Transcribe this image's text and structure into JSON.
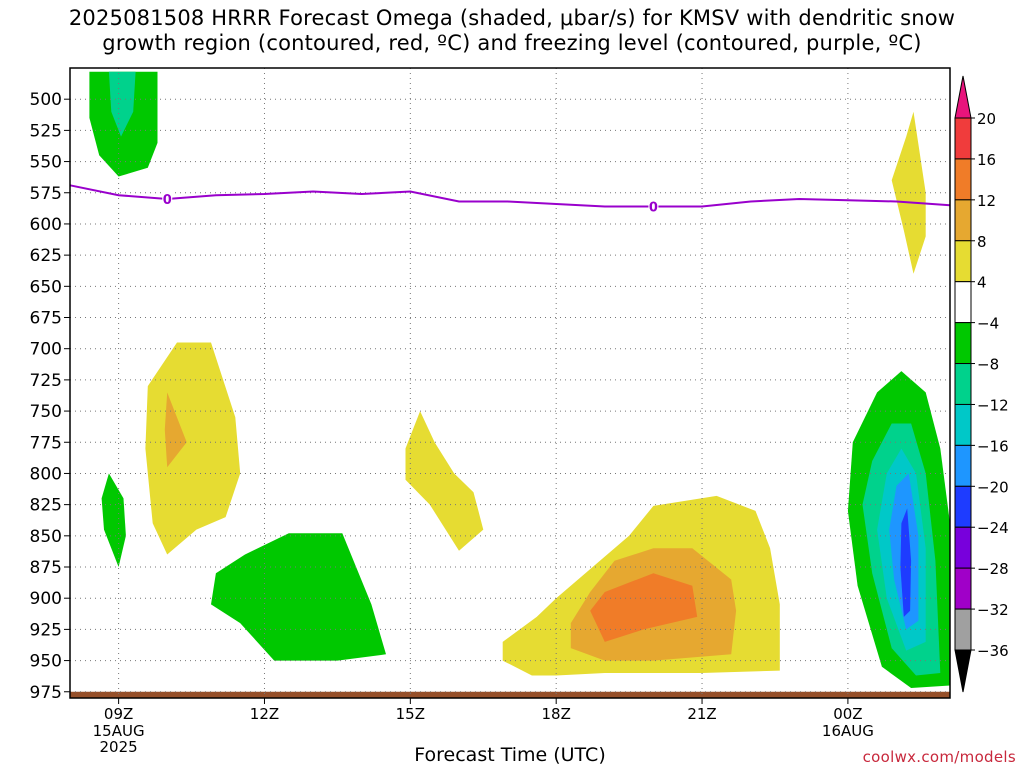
{
  "title": {
    "line1": "2025081508 HRRR Forecast Omega (shaded, μbar/s) for KMSV with dendritic snow",
    "line2": "growth region (contoured, red, ºC) and freezing level (contoured, purple, ºC)"
  },
  "credit": "coolwx.com/models",
  "chart_data": {
    "type": "heatmap",
    "title": "2025081508 HRRR Forecast Omega (shaded, μbar/s) for KMSV with dendritic snow growth region (contoured, red, ºC) and freezing level (contoured, purple, ºC)",
    "xlabel": "Forecast Time (UTC)",
    "ylabel": "",
    "x_range_hours_from_09Z": [
      -1,
      17.1
    ],
    "y_range_hPa": [
      475,
      980
    ],
    "y_axis": "pressure (inverted)",
    "y_ticks": [
      500,
      525,
      550,
      575,
      600,
      625,
      650,
      675,
      700,
      725,
      750,
      775,
      800,
      825,
      850,
      875,
      900,
      925,
      950,
      975
    ],
    "x_ticks": [
      {
        "hour": 0,
        "label": "09Z",
        "sub": [
          "15AUG",
          "2025"
        ]
      },
      {
        "hour": 3,
        "label": "12Z",
        "sub": []
      },
      {
        "hour": 6,
        "label": "15Z",
        "sub": []
      },
      {
        "hour": 9,
        "label": "18Z",
        "sub": []
      },
      {
        "hour": 12,
        "label": "21Z",
        "sub": []
      },
      {
        "hour": 15,
        "label": "00Z",
        "sub": [
          "16AUG"
        ]
      }
    ],
    "grid": true,
    "colorbar": {
      "position": "right",
      "labels": [
        "20",
        "16",
        "12",
        "8",
        "4",
        "−4",
        "−8",
        "−12",
        "−16",
        "−20",
        "−24",
        "−28",
        "−32",
        "−36"
      ],
      "levels": [
        {
          "min": 20,
          "color": "#e8147c"
        },
        {
          "min": 16,
          "max": 20,
          "color": "#f03c3c"
        },
        {
          "min": 12,
          "max": 16,
          "color": "#f07c28"
        },
        {
          "min": 8,
          "max": 12,
          "color": "#e6a830"
        },
        {
          "min": 4,
          "max": 8,
          "color": "#e6dc32"
        },
        {
          "min": -4,
          "max": 4,
          "color": "#ffffff"
        },
        {
          "min": -8,
          "max": -4,
          "color": "#00c800"
        },
        {
          "min": -12,
          "max": -8,
          "color": "#00d28c"
        },
        {
          "min": -16,
          "max": -12,
          "color": "#00c8c8"
        },
        {
          "min": -20,
          "max": -16,
          "color": "#1e96ff"
        },
        {
          "min": -24,
          "max": -20,
          "color": "#1e3cff"
        },
        {
          "min": -28,
          "max": -24,
          "color": "#7800dc"
        },
        {
          "min": -32,
          "max": -28,
          "color": "#a000c8"
        },
        {
          "min": -36,
          "max": -32,
          "color": "#a0a0a0"
        },
        {
          "max": -36,
          "color": "#000000"
        }
      ]
    },
    "freezing_level": {
      "color": "#9900cc",
      "label": "0",
      "label_points": [
        {
          "t": 1,
          "p": 580
        },
        {
          "t": 11,
          "p": 586
        }
      ],
      "points": [
        {
          "t": -1,
          "p": 569
        },
        {
          "t": 0,
          "p": 577
        },
        {
          "t": 1,
          "p": 580
        },
        {
          "t": 2,
          "p": 577
        },
        {
          "t": 3,
          "p": 576
        },
        {
          "t": 4,
          "p": 574
        },
        {
          "t": 5,
          "p": 576
        },
        {
          "t": 6,
          "p": 574
        },
        {
          "t": 7,
          "p": 582
        },
        {
          "t": 8,
          "p": 582
        },
        {
          "t": 9,
          "p": 584
        },
        {
          "t": 10,
          "p": 586
        },
        {
          "t": 11,
          "p": 586
        },
        {
          "t": 12,
          "p": 586
        },
        {
          "t": 13,
          "p": 582
        },
        {
          "t": 14,
          "p": 580
        },
        {
          "t": 15,
          "p": 581
        },
        {
          "t": 16,
          "p": 582
        },
        {
          "t": 17.1,
          "p": 585
        }
      ]
    },
    "omega_regions": [
      {
        "level": "-8 to -4",
        "color": "#00c800",
        "points": [
          [
            -0.6,
            478
          ],
          [
            0.8,
            478
          ],
          [
            0.8,
            535
          ],
          [
            0.6,
            555
          ],
          [
            0,
            562
          ],
          [
            -0.4,
            545
          ],
          [
            -0.6,
            515
          ]
        ]
      },
      {
        "level": "-12 to -8",
        "color": "#00d28c",
        "points": [
          [
            -0.2,
            478
          ],
          [
            0.35,
            478
          ],
          [
            0.3,
            510
          ],
          [
            0.05,
            530
          ],
          [
            -0.15,
            510
          ]
        ]
      },
      {
        "level": "-8 to -4",
        "color": "#00c800",
        "points": [
          [
            -0.2,
            800
          ],
          [
            0.1,
            820
          ],
          [
            0.15,
            850
          ],
          [
            0,
            875
          ],
          [
            -0.3,
            845
          ],
          [
            -0.35,
            820
          ]
        ]
      },
      {
        "level": "4 to 8",
        "color": "#e6dc32",
        "points": [
          [
            0.6,
            730
          ],
          [
            1.2,
            695
          ],
          [
            1.9,
            695
          ],
          [
            2.4,
            755
          ],
          [
            2.5,
            800
          ],
          [
            2.2,
            835
          ],
          [
            1.6,
            845
          ],
          [
            1,
            865
          ],
          [
            0.7,
            840
          ],
          [
            0.55,
            780
          ]
        ]
      },
      {
        "level": "8 to 12",
        "color": "#e6a830",
        "points": [
          [
            1,
            735
          ],
          [
            1.4,
            775
          ],
          [
            1,
            795
          ],
          [
            0.95,
            765
          ]
        ]
      },
      {
        "level": "-8 to -4",
        "color": "#00c800",
        "points": [
          [
            2,
            880
          ],
          [
            2.6,
            865
          ],
          [
            3.5,
            848
          ],
          [
            4.6,
            848
          ],
          [
            5.2,
            905
          ],
          [
            5.5,
            945
          ],
          [
            4.5,
            950
          ],
          [
            3.2,
            950
          ],
          [
            2.5,
            920
          ],
          [
            1.9,
            905
          ]
        ]
      },
      {
        "level": "4 to 8",
        "color": "#e6dc32",
        "points": [
          [
            5.9,
            780
          ],
          [
            6.2,
            750
          ],
          [
            6.5,
            775
          ],
          [
            6.9,
            800
          ],
          [
            7.3,
            815
          ],
          [
            7.5,
            845
          ],
          [
            7,
            862
          ],
          [
            6.4,
            825
          ],
          [
            5.9,
            805
          ]
        ]
      },
      {
        "level": "4 to 8",
        "color": "#e6dc32",
        "points": [
          [
            7.9,
            935
          ],
          [
            8.6,
            915
          ],
          [
            9,
            900
          ],
          [
            10.5,
            850
          ],
          [
            11,
            826
          ],
          [
            12.3,
            818
          ],
          [
            13.1,
            830
          ],
          [
            13.4,
            860
          ],
          [
            13.6,
            905
          ],
          [
            13.6,
            958
          ],
          [
            12,
            960
          ],
          [
            10,
            960
          ],
          [
            9,
            962
          ],
          [
            8.5,
            962
          ],
          [
            7.9,
            950
          ]
        ]
      },
      {
        "level": "8 to 12",
        "color": "#e6a830",
        "points": [
          [
            9.3,
            920
          ],
          [
            9.7,
            895
          ],
          [
            10.2,
            870
          ],
          [
            11,
            860
          ],
          [
            11.8,
            860
          ],
          [
            12.6,
            885
          ],
          [
            12.7,
            910
          ],
          [
            12.6,
            945
          ],
          [
            11,
            950
          ],
          [
            10,
            950
          ],
          [
            9.3,
            940
          ]
        ]
      },
      {
        "level": "12 to 16",
        "color": "#f07c28",
        "points": [
          [
            9.7,
            910
          ],
          [
            10,
            895
          ],
          [
            11,
            880
          ],
          [
            11.8,
            890
          ],
          [
            11.9,
            915
          ],
          [
            10.8,
            925
          ],
          [
            10,
            935
          ]
        ]
      },
      {
        "level": "4 to 8",
        "color": "#e6dc32",
        "points": [
          [
            16.2,
            530
          ],
          [
            16.35,
            510
          ],
          [
            16.6,
            575
          ],
          [
            16.6,
            610
          ],
          [
            16.35,
            640
          ],
          [
            16.15,
            605
          ],
          [
            15.9,
            565
          ]
        ]
      },
      {
        "level": "-8 to -4",
        "color": "#00c800",
        "points": [
          [
            15.1,
            775
          ],
          [
            15.6,
            735
          ],
          [
            16.1,
            718
          ],
          [
            16.6,
            735
          ],
          [
            16.9,
            780
          ],
          [
            17.1,
            840
          ],
          [
            17.1,
            970
          ],
          [
            16.3,
            972
          ],
          [
            15.7,
            955
          ],
          [
            15.2,
            890
          ],
          [
            15,
            830
          ]
        ]
      },
      {
        "level": "-12 to -8",
        "color": "#00d28c",
        "points": [
          [
            15.5,
            790
          ],
          [
            15.9,
            760
          ],
          [
            16.3,
            760
          ],
          [
            16.6,
            800
          ],
          [
            16.8,
            870
          ],
          [
            16.9,
            960
          ],
          [
            16.4,
            962
          ],
          [
            15.9,
            940
          ],
          [
            15.5,
            880
          ],
          [
            15.3,
            825
          ]
        ]
      },
      {
        "level": "-16 to -12",
        "color": "#00c8c8",
        "points": [
          [
            15.8,
            800
          ],
          [
            16.1,
            780
          ],
          [
            16.4,
            800
          ],
          [
            16.6,
            860
          ],
          [
            16.6,
            935
          ],
          [
            16.2,
            942
          ],
          [
            15.8,
            900
          ],
          [
            15.6,
            845
          ]
        ]
      },
      {
        "level": "-20 to -16",
        "color": "#1e96ff",
        "points": [
          [
            16,
            810
          ],
          [
            16.25,
            800
          ],
          [
            16.45,
            850
          ],
          [
            16.45,
            918
          ],
          [
            16.2,
            925
          ],
          [
            15.95,
            885
          ],
          [
            15.85,
            845
          ]
        ]
      },
      {
        "level": "-24 to -20",
        "color": "#1e3cff",
        "points": [
          [
            16.1,
            840
          ],
          [
            16.22,
            828
          ],
          [
            16.3,
            870
          ],
          [
            16.28,
            910
          ],
          [
            16.15,
            915
          ],
          [
            16.08,
            875
          ]
        ]
      }
    ],
    "ground_level": {
      "color": "#96502a"
    }
  }
}
